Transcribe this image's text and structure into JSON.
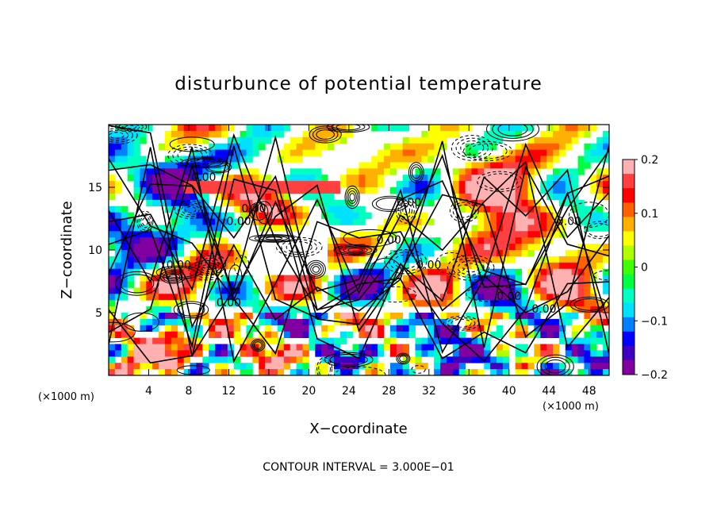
{
  "chart_data": {
    "type": "heatmap",
    "title": "disturbunce of potential temperature",
    "xlabel": "X−coordinate",
    "ylabel": "Z−coordinate",
    "x_unit": "(×1000 m)",
    "z_unit": "(×1000 m)",
    "xlim": [
      0,
      50
    ],
    "zlim": [
      0,
      20
    ],
    "x_ticks": [
      "4",
      "8",
      "12",
      "16",
      "20",
      "24",
      "28",
      "32",
      "36",
      "40",
      "44",
      "48"
    ],
    "z_ticks": [
      "5",
      "10",
      "15"
    ],
    "colorbar": {
      "range": [
        -0.2,
        0.2
      ],
      "tick_labels": [
        "0.2",
        "0.1",
        "0",
        "−0.1",
        "−0.2"
      ],
      "colors": [
        "#ffb0b0",
        "#ff4040",
        "#ff0000",
        "#ff6000",
        "#ffb000",
        "#ffff00",
        "#b0ff00",
        "#40ff00",
        "#00ff40",
        "#00ffc0",
        "#00e0ff",
        "#0080ff",
        "#0000ff",
        "#4000c0",
        "#8000a0"
      ]
    },
    "contour_label": "0.00",
    "contour_interval_text": "CONTOUR INTERVAL = 3.000E−01"
  }
}
